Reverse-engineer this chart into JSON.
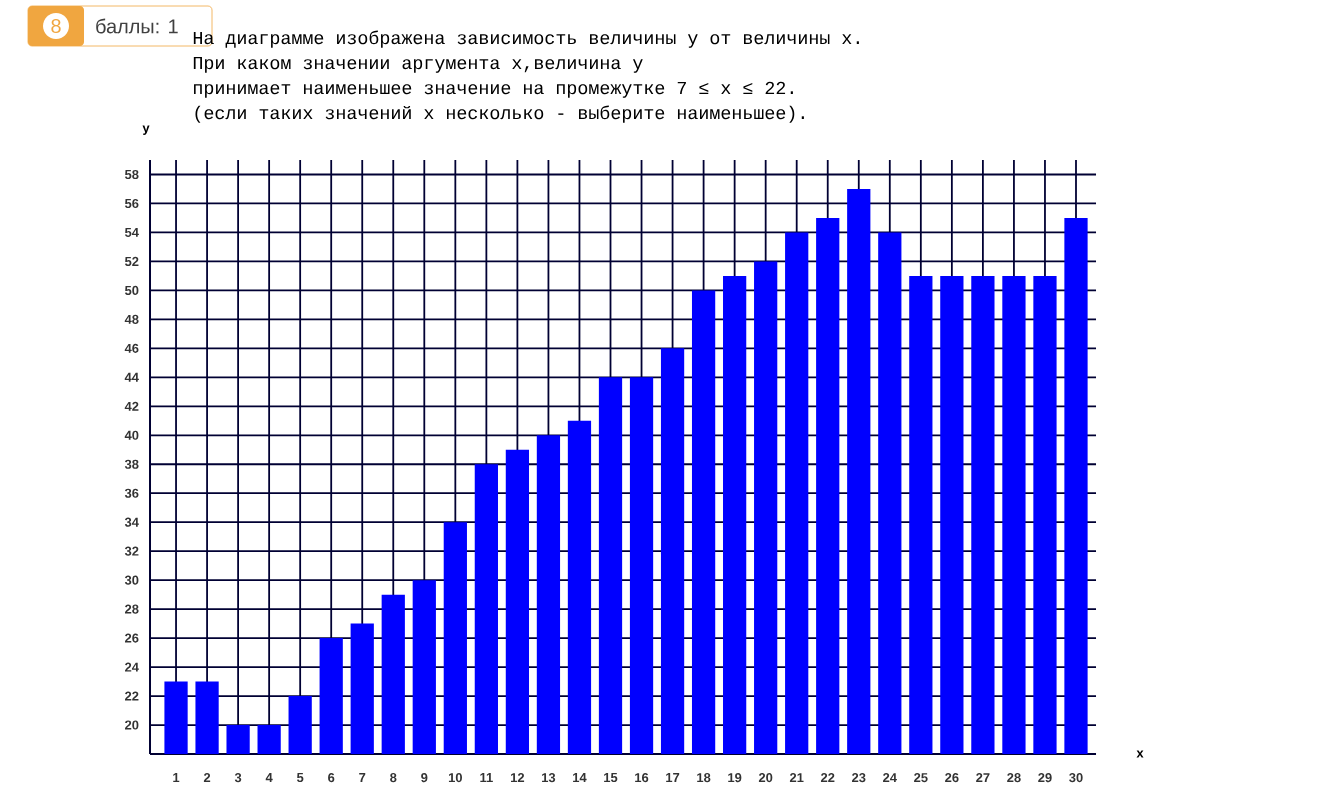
{
  "chart_data": {
    "type": "bar",
    "title": "На диаграмме изображена зависимость величины y от величины x.",
    "subtitle": "При каком значении аргумента x,величина y",
    "annotations": [
      "принимает наименьшее значение на промежутке 7 ≤ x ≤ 22.",
      "(если таких значений x несколько - выберите наименьшее).",
      "8",
      "баллы: 1"
    ],
    "xlabel": "x",
    "ylabel": "y",
    "categories": [
      "1",
      "2",
      "3",
      "4",
      "5",
      "6",
      "7",
      "8",
      "9",
      "10",
      "11",
      "12",
      "13",
      "14",
      "15",
      "16",
      "17",
      "18",
      "19",
      "20",
      "21",
      "22",
      "23",
      "24",
      "25",
      "26",
      "27",
      "28",
      "29",
      "30"
    ],
    "values": [
      23,
      23,
      20,
      20,
      22,
      26,
      27,
      29,
      30,
      34,
      38,
      39,
      40,
      41,
      44,
      44,
      46,
      50,
      51,
      52,
      54,
      55,
      57,
      54,
      51,
      51,
      51,
      51,
      51,
      55
    ],
    "color": "#0000ff",
    "ylim": [
      18,
      59
    ],
    "yticks": [
      20,
      22,
      24,
      26,
      28,
      30,
      32,
      34,
      36,
      38,
      40,
      42,
      44,
      46,
      48,
      50,
      52,
      54,
      56,
      58
    ],
    "grid": true
  }
}
